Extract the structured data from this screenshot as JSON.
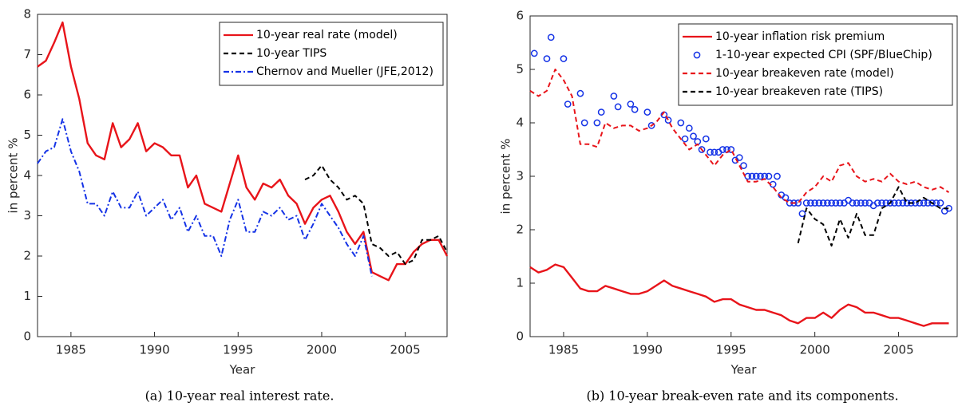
{
  "chart_data": [
    {
      "type": "line",
      "caption": "(a) 10-year real interest rate.",
      "xlabel": "Year",
      "ylabel": "in percent %",
      "xlim": [
        1983,
        2007.5
      ],
      "xticks": [
        1985,
        1990,
        1995,
        2000,
        2005
      ],
      "ylim": [
        0,
        8
      ],
      "yticks": [
        0,
        1,
        2,
        3,
        4,
        5,
        6,
        7,
        8
      ],
      "legend": "upper right",
      "x": [
        1983,
        1983.5,
        1984,
        1984.5,
        1985,
        1985.5,
        1986,
        1986.5,
        1987,
        1987.5,
        1988,
        1988.5,
        1989,
        1989.5,
        1990,
        1990.5,
        1991,
        1991.5,
        1992,
        1992.5,
        1993,
        1993.5,
        1994,
        1994.5,
        1995,
        1995.5,
        1996,
        1996.5,
        1997,
        1997.5,
        1998,
        1998.5,
        1999,
        1999.5,
        2000,
        2000.5,
        2001,
        2001.5,
        2002,
        2002.5,
        2003,
        2003.5,
        2004,
        2004.5,
        2005,
        2005.5,
        2006,
        2006.5,
        2007,
        2007.5
      ],
      "series": [
        {
          "name": "10-year real rate (model)",
          "color": "#e8141a",
          "style": "solid",
          "values": [
            6.7,
            6.85,
            7.3,
            7.8,
            6.7,
            5.9,
            4.8,
            4.5,
            4.4,
            5.3,
            4.7,
            4.9,
            5.3,
            4.6,
            4.8,
            4.7,
            4.5,
            4.5,
            3.7,
            4.0,
            3.3,
            3.2,
            3.1,
            3.8,
            4.5,
            3.7,
            3.4,
            3.8,
            3.7,
            3.9,
            3.5,
            3.3,
            2.8,
            3.2,
            3.4,
            3.5,
            3.1,
            2.6,
            2.3,
            2.6,
            1.6,
            1.5,
            1.4,
            1.8,
            1.8,
            2.1,
            2.3,
            2.4,
            2.4,
            2.0
          ]
        },
        {
          "name": "10-year TIPS",
          "color": "#000000",
          "style": "dashed",
          "values": [
            null,
            null,
            null,
            null,
            null,
            null,
            null,
            null,
            null,
            null,
            null,
            null,
            null,
            null,
            null,
            null,
            null,
            null,
            null,
            null,
            null,
            null,
            null,
            null,
            null,
            null,
            null,
            null,
            null,
            null,
            null,
            null,
            3.9,
            4.0,
            4.25,
            3.9,
            3.7,
            3.4,
            3.5,
            3.3,
            2.3,
            2.2,
            2.0,
            2.1,
            1.8,
            1.9,
            2.4,
            2.4,
            2.5,
            2.1
          ]
        },
        {
          "name": "Chernov and Mueller (JFE,2012)",
          "color": "#1432e6",
          "style": "dashdot",
          "values": [
            4.3,
            4.6,
            4.7,
            5.4,
            4.6,
            4.1,
            3.3,
            3.3,
            3.0,
            3.6,
            3.2,
            3.2,
            3.6,
            3.0,
            3.2,
            3.4,
            2.9,
            3.2,
            2.6,
            3.0,
            2.5,
            2.5,
            2.0,
            2.9,
            3.4,
            2.6,
            2.6,
            3.1,
            3.0,
            3.2,
            2.9,
            3.0,
            2.4,
            2.8,
            3.3,
            3.0,
            2.7,
            2.3,
            2.0,
            2.5,
            1.5,
            null,
            null,
            null,
            null,
            null,
            null,
            null,
            null,
            null
          ]
        }
      ]
    },
    {
      "type": "line",
      "caption": "(b) 10-year break-even rate and its components.",
      "xlabel": "Year",
      "ylabel": "in percent %",
      "xlim": [
        1983,
        2008.5
      ],
      "xticks": [
        1985,
        1990,
        1995,
        2000,
        2005
      ],
      "ylim": [
        0,
        6
      ],
      "yticks": [
        0,
        1,
        2,
        3,
        4,
        5,
        6
      ],
      "legend": "upper center",
      "x": [
        1983,
        1983.5,
        1984,
        1984.5,
        1985,
        1985.5,
        1986,
        1986.5,
        1987,
        1987.5,
        1988,
        1988.5,
        1989,
        1989.5,
        1990,
        1990.5,
        1991,
        1991.5,
        1992,
        1992.5,
        1993,
        1993.5,
        1994,
        1994.5,
        1995,
        1995.5,
        1996,
        1996.5,
        1997,
        1997.5,
        1998,
        1998.5,
        1999,
        1999.5,
        2000,
        2000.5,
        2001,
        2001.5,
        2002,
        2002.5,
        2003,
        2003.5,
        2004,
        2004.5,
        2005,
        2005.5,
        2006,
        2006.5,
        2007,
        2007.5,
        2008
      ],
      "series": [
        {
          "name": "10-year inflation risk premium",
          "color": "#e8141a",
          "style": "solid",
          "values": [
            1.3,
            1.2,
            1.25,
            1.35,
            1.3,
            1.1,
            0.9,
            0.85,
            0.85,
            0.95,
            0.9,
            0.85,
            0.8,
            0.8,
            0.85,
            0.95,
            1.05,
            0.95,
            0.9,
            0.85,
            0.8,
            0.75,
            0.65,
            0.7,
            0.7,
            0.6,
            0.55,
            0.5,
            0.5,
            0.45,
            0.4,
            0.3,
            0.25,
            0.35,
            0.35,
            0.45,
            0.35,
            0.5,
            0.6,
            0.55,
            0.45,
            0.45,
            0.4,
            0.35,
            0.35,
            0.3,
            0.25,
            0.2,
            0.25,
            0.25,
            0.25
          ]
        },
        {
          "name": "1-10-year expected CPI (SPF/BlueChip)",
          "color": "#1432e6",
          "style": "circle",
          "x": [
            1983.25,
            1984,
            1984.25,
            1985,
            1985.25,
            1986,
            1986.25,
            1987,
            1987.25,
            1988,
            1988.25,
            1989,
            1989.25,
            1990,
            1990.25,
            1991,
            1991.25,
            1992,
            1992.25,
            1992.5,
            1992.75,
            1993,
            1993.25,
            1993.5,
            1993.75,
            1994,
            1994.25,
            1994.5,
            1994.75,
            1995,
            1995.25,
            1995.5,
            1995.75,
            1996,
            1996.25,
            1996.5,
            1996.75,
            1997,
            1997.25,
            1997.5,
            1997.75,
            1998,
            1998.25,
            1998.5,
            1998.75,
            1999,
            1999.25,
            1999.5,
            1999.75,
            2000,
            2000.25,
            2000.5,
            2000.75,
            2001,
            2001.25,
            2001.5,
            2001.75,
            2002,
            2002.25,
            2002.5,
            2002.75,
            2003,
            2003.25,
            2003.5,
            2003.75,
            2004,
            2004.25,
            2004.5,
            2004.75,
            2005,
            2005.25,
            2005.5,
            2005.75,
            2006,
            2006.25,
            2006.5,
            2006.75,
            2007,
            2007.25,
            2007.5,
            2007.75,
            2008
          ],
          "values": [
            5.3,
            5.2,
            5.6,
            5.2,
            4.35,
            4.55,
            4.0,
            4.0,
            4.2,
            4.5,
            4.3,
            4.35,
            4.25,
            4.2,
            3.95,
            4.15,
            4.05,
            4.0,
            3.7,
            3.9,
            3.75,
            3.65,
            3.5,
            3.7,
            3.45,
            3.45,
            3.45,
            3.5,
            3.5,
            3.5,
            3.3,
            3.35,
            3.2,
            3.0,
            3.0,
            3.0,
            3.0,
            3.0,
            3.0,
            2.85,
            3.0,
            2.65,
            2.6,
            2.5,
            2.5,
            2.5,
            2.3,
            2.5,
            2.5,
            2.5,
            2.5,
            2.5,
            2.5,
            2.5,
            2.5,
            2.5,
            2.5,
            2.55,
            2.5,
            2.5,
            2.5,
            2.5,
            2.5,
            2.45,
            2.5,
            2.5,
            2.5,
            2.5,
            2.5,
            2.5,
            2.5,
            2.5,
            2.5,
            2.5,
            2.5,
            2.5,
            2.5,
            2.5,
            2.5,
            2.5,
            2.35,
            2.4
          ]
        },
        {
          "name": "10-year breakeven rate (model)",
          "color": "#e8141a",
          "style": "dashed",
          "values": [
            4.6,
            4.5,
            4.6,
            5.0,
            4.8,
            4.5,
            3.6,
            3.6,
            3.55,
            4.0,
            3.9,
            3.95,
            3.95,
            3.85,
            3.9,
            4.0,
            4.2,
            3.9,
            3.7,
            3.5,
            3.6,
            3.4,
            3.2,
            3.4,
            3.5,
            3.2,
            2.9,
            2.9,
            2.95,
            2.8,
            2.6,
            2.5,
            2.5,
            2.7,
            2.8,
            3.0,
            2.9,
            3.2,
            3.25,
            3.0,
            2.9,
            2.95,
            2.9,
            3.05,
            2.9,
            2.85,
            2.9,
            2.8,
            2.75,
            2.8,
            2.7
          ]
        },
        {
          "name": "10-year breakeven rate (TIPS)",
          "color": "#000000",
          "style": "dashed",
          "values": [
            null,
            null,
            null,
            null,
            null,
            null,
            null,
            null,
            null,
            null,
            null,
            null,
            null,
            null,
            null,
            null,
            null,
            null,
            null,
            null,
            null,
            null,
            null,
            null,
            null,
            null,
            null,
            null,
            null,
            null,
            null,
            null,
            1.75,
            2.4,
            2.2,
            2.1,
            1.7,
            2.2,
            1.85,
            2.3,
            1.9,
            1.9,
            2.4,
            2.5,
            2.8,
            2.5,
            2.5,
            2.6,
            2.5,
            2.4,
            2.4
          ]
        }
      ]
    }
  ]
}
